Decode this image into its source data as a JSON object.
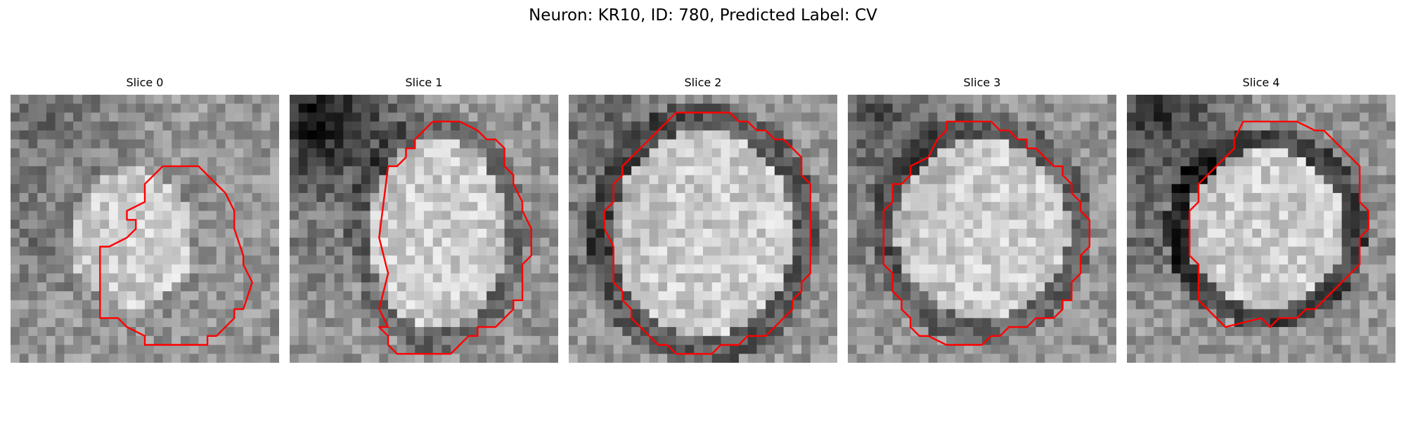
{
  "figure": {
    "title": "Neuron: KR10, ID: 780, Predicted Label: CV"
  },
  "panels": [
    {
      "title": "Slice 0"
    },
    {
      "title": "Slice 1"
    },
    {
      "title": "Slice 2"
    },
    {
      "title": "Slice 3"
    },
    {
      "title": "Slice 4"
    }
  ],
  "colors": {
    "contour": "#ff0000"
  }
}
